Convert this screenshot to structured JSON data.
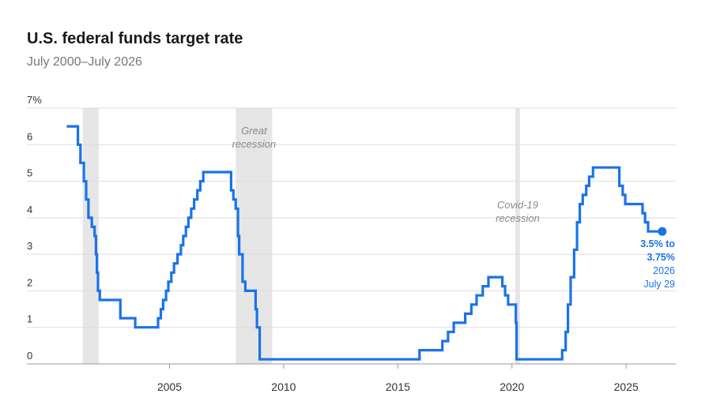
{
  "chart_data": {
    "type": "line",
    "title": "U.S. federal funds target rate",
    "subtitle": "July 2000–July 2026",
    "xlabel": "",
    "ylabel": "",
    "xlim": [
      2000,
      2027
    ],
    "ylim": [
      0,
      7
    ],
    "y_ticks": [
      {
        "value": 0,
        "label": "0"
      },
      {
        "value": 1,
        "label": "1"
      },
      {
        "value": 2,
        "label": "2"
      },
      {
        "value": 3,
        "label": "3"
      },
      {
        "value": 4,
        "label": "4"
      },
      {
        "value": 5,
        "label": "5"
      },
      {
        "value": 6,
        "label": "6"
      },
      {
        "value": 7,
        "label": "7%"
      }
    ],
    "x_ticks": [
      {
        "value": 2005,
        "label": "2005"
      },
      {
        "value": 2010,
        "label": "2010"
      },
      {
        "value": 2015,
        "label": "2015"
      },
      {
        "value": 2020,
        "label": "2020"
      },
      {
        "value": 2025,
        "label": "2025"
      }
    ],
    "grid": "horizontal",
    "recessions": [
      {
        "start": 2001.2,
        "end": 2001.9,
        "label": ""
      },
      {
        "start": 2007.9,
        "end": 2009.5,
        "label_lines": [
          "Great",
          "recession"
        ]
      },
      {
        "start": 2020.15,
        "end": 2020.35,
        "label_lines": [
          "Covid-19",
          "recession"
        ]
      }
    ],
    "series": [
      {
        "name": "",
        "color": "#1a73e8",
        "points": [
          [
            2000.5,
            6.5
          ],
          [
            2000.99,
            6.5
          ],
          [
            2000.99,
            6.0
          ],
          [
            2001.1,
            6.0
          ],
          [
            2001.1,
            5.5
          ],
          [
            2001.25,
            5.5
          ],
          [
            2001.25,
            5.0
          ],
          [
            2001.35,
            5.0
          ],
          [
            2001.35,
            4.5
          ],
          [
            2001.45,
            4.5
          ],
          [
            2001.45,
            4.0
          ],
          [
            2001.6,
            4.0
          ],
          [
            2001.6,
            3.75
          ],
          [
            2001.72,
            3.75
          ],
          [
            2001.72,
            3.5
          ],
          [
            2001.78,
            3.5
          ],
          [
            2001.78,
            3.0
          ],
          [
            2001.82,
            3.0
          ],
          [
            2001.82,
            2.5
          ],
          [
            2001.87,
            2.5
          ],
          [
            2001.87,
            2.0
          ],
          [
            2001.95,
            2.0
          ],
          [
            2001.95,
            1.75
          ],
          [
            2002.85,
            1.75
          ],
          [
            2002.85,
            1.25
          ],
          [
            2003.5,
            1.25
          ],
          [
            2003.5,
            1.0
          ],
          [
            2004.5,
            1.0
          ],
          [
            2004.5,
            1.25
          ],
          [
            2004.62,
            1.25
          ],
          [
            2004.62,
            1.5
          ],
          [
            2004.72,
            1.5
          ],
          [
            2004.72,
            1.75
          ],
          [
            2004.85,
            1.75
          ],
          [
            2004.85,
            2.0
          ],
          [
            2004.95,
            2.0
          ],
          [
            2004.95,
            2.25
          ],
          [
            2005.08,
            2.25
          ],
          [
            2005.08,
            2.5
          ],
          [
            2005.2,
            2.5
          ],
          [
            2005.2,
            2.75
          ],
          [
            2005.35,
            2.75
          ],
          [
            2005.35,
            3.0
          ],
          [
            2005.5,
            3.0
          ],
          [
            2005.5,
            3.25
          ],
          [
            2005.6,
            3.25
          ],
          [
            2005.6,
            3.5
          ],
          [
            2005.72,
            3.5
          ],
          [
            2005.72,
            3.75
          ],
          [
            2005.83,
            3.75
          ],
          [
            2005.83,
            4.0
          ],
          [
            2005.95,
            4.0
          ],
          [
            2005.95,
            4.25
          ],
          [
            2006.08,
            4.25
          ],
          [
            2006.08,
            4.5
          ],
          [
            2006.22,
            4.5
          ],
          [
            2006.22,
            4.75
          ],
          [
            2006.35,
            4.75
          ],
          [
            2006.35,
            5.0
          ],
          [
            2006.48,
            5.0
          ],
          [
            2006.48,
            5.25
          ],
          [
            2007.7,
            5.25
          ],
          [
            2007.7,
            4.75
          ],
          [
            2007.8,
            4.75
          ],
          [
            2007.8,
            4.5
          ],
          [
            2007.9,
            4.5
          ],
          [
            2007.9,
            4.25
          ],
          [
            2008.0,
            4.25
          ],
          [
            2008.0,
            3.5
          ],
          [
            2008.05,
            3.5
          ],
          [
            2008.05,
            3.0
          ],
          [
            2008.2,
            3.0
          ],
          [
            2008.2,
            2.25
          ],
          [
            2008.32,
            2.25
          ],
          [
            2008.32,
            2.0
          ],
          [
            2008.77,
            2.0
          ],
          [
            2008.77,
            1.5
          ],
          [
            2008.83,
            1.5
          ],
          [
            2008.83,
            1.0
          ],
          [
            2008.95,
            1.0
          ],
          [
            2008.95,
            0.125
          ],
          [
            2015.95,
            0.125
          ],
          [
            2015.95,
            0.375
          ],
          [
            2016.95,
            0.375
          ],
          [
            2016.95,
            0.625
          ],
          [
            2017.2,
            0.625
          ],
          [
            2017.2,
            0.875
          ],
          [
            2017.45,
            0.875
          ],
          [
            2017.45,
            1.125
          ],
          [
            2017.95,
            1.125
          ],
          [
            2017.95,
            1.375
          ],
          [
            2018.22,
            1.375
          ],
          [
            2018.22,
            1.625
          ],
          [
            2018.45,
            1.625
          ],
          [
            2018.45,
            1.875
          ],
          [
            2018.72,
            1.875
          ],
          [
            2018.72,
            2.125
          ],
          [
            2018.97,
            2.125
          ],
          [
            2018.97,
            2.375
          ],
          [
            2019.58,
            2.375
          ],
          [
            2019.58,
            2.125
          ],
          [
            2019.7,
            2.125
          ],
          [
            2019.7,
            1.875
          ],
          [
            2019.83,
            1.875
          ],
          [
            2019.83,
            1.625
          ],
          [
            2020.17,
            1.625
          ],
          [
            2020.17,
            1.125
          ],
          [
            2020.2,
            1.125
          ],
          [
            2020.2,
            0.125
          ],
          [
            2022.2,
            0.125
          ],
          [
            2022.2,
            0.375
          ],
          [
            2022.35,
            0.375
          ],
          [
            2022.35,
            0.875
          ],
          [
            2022.45,
            0.875
          ],
          [
            2022.45,
            1.625
          ],
          [
            2022.57,
            1.625
          ],
          [
            2022.57,
            2.375
          ],
          [
            2022.72,
            2.375
          ],
          [
            2022.72,
            3.125
          ],
          [
            2022.85,
            3.125
          ],
          [
            2022.85,
            3.875
          ],
          [
            2022.97,
            3.875
          ],
          [
            2022.97,
            4.375
          ],
          [
            2023.1,
            4.375
          ],
          [
            2023.1,
            4.625
          ],
          [
            2023.25,
            4.625
          ],
          [
            2023.25,
            4.875
          ],
          [
            2023.38,
            4.875
          ],
          [
            2023.38,
            5.125
          ],
          [
            2023.55,
            5.125
          ],
          [
            2023.55,
            5.375
          ],
          [
            2024.7,
            5.375
          ],
          [
            2024.7,
            4.875
          ],
          [
            2024.85,
            4.875
          ],
          [
            2024.85,
            4.625
          ],
          [
            2024.96,
            4.625
          ],
          [
            2024.96,
            4.375
          ],
          [
            2025.72,
            4.375
          ],
          [
            2025.72,
            4.125
          ],
          [
            2025.83,
            4.125
          ],
          [
            2025.83,
            3.875
          ],
          [
            2025.96,
            3.875
          ],
          [
            2025.96,
            3.625
          ],
          [
            2026.58,
            3.625
          ]
        ]
      }
    ],
    "end_annotation": {
      "value_lines": [
        "3.5% to",
        "3.75%"
      ],
      "date_lines": [
        "2026",
        "July 29"
      ]
    }
  }
}
